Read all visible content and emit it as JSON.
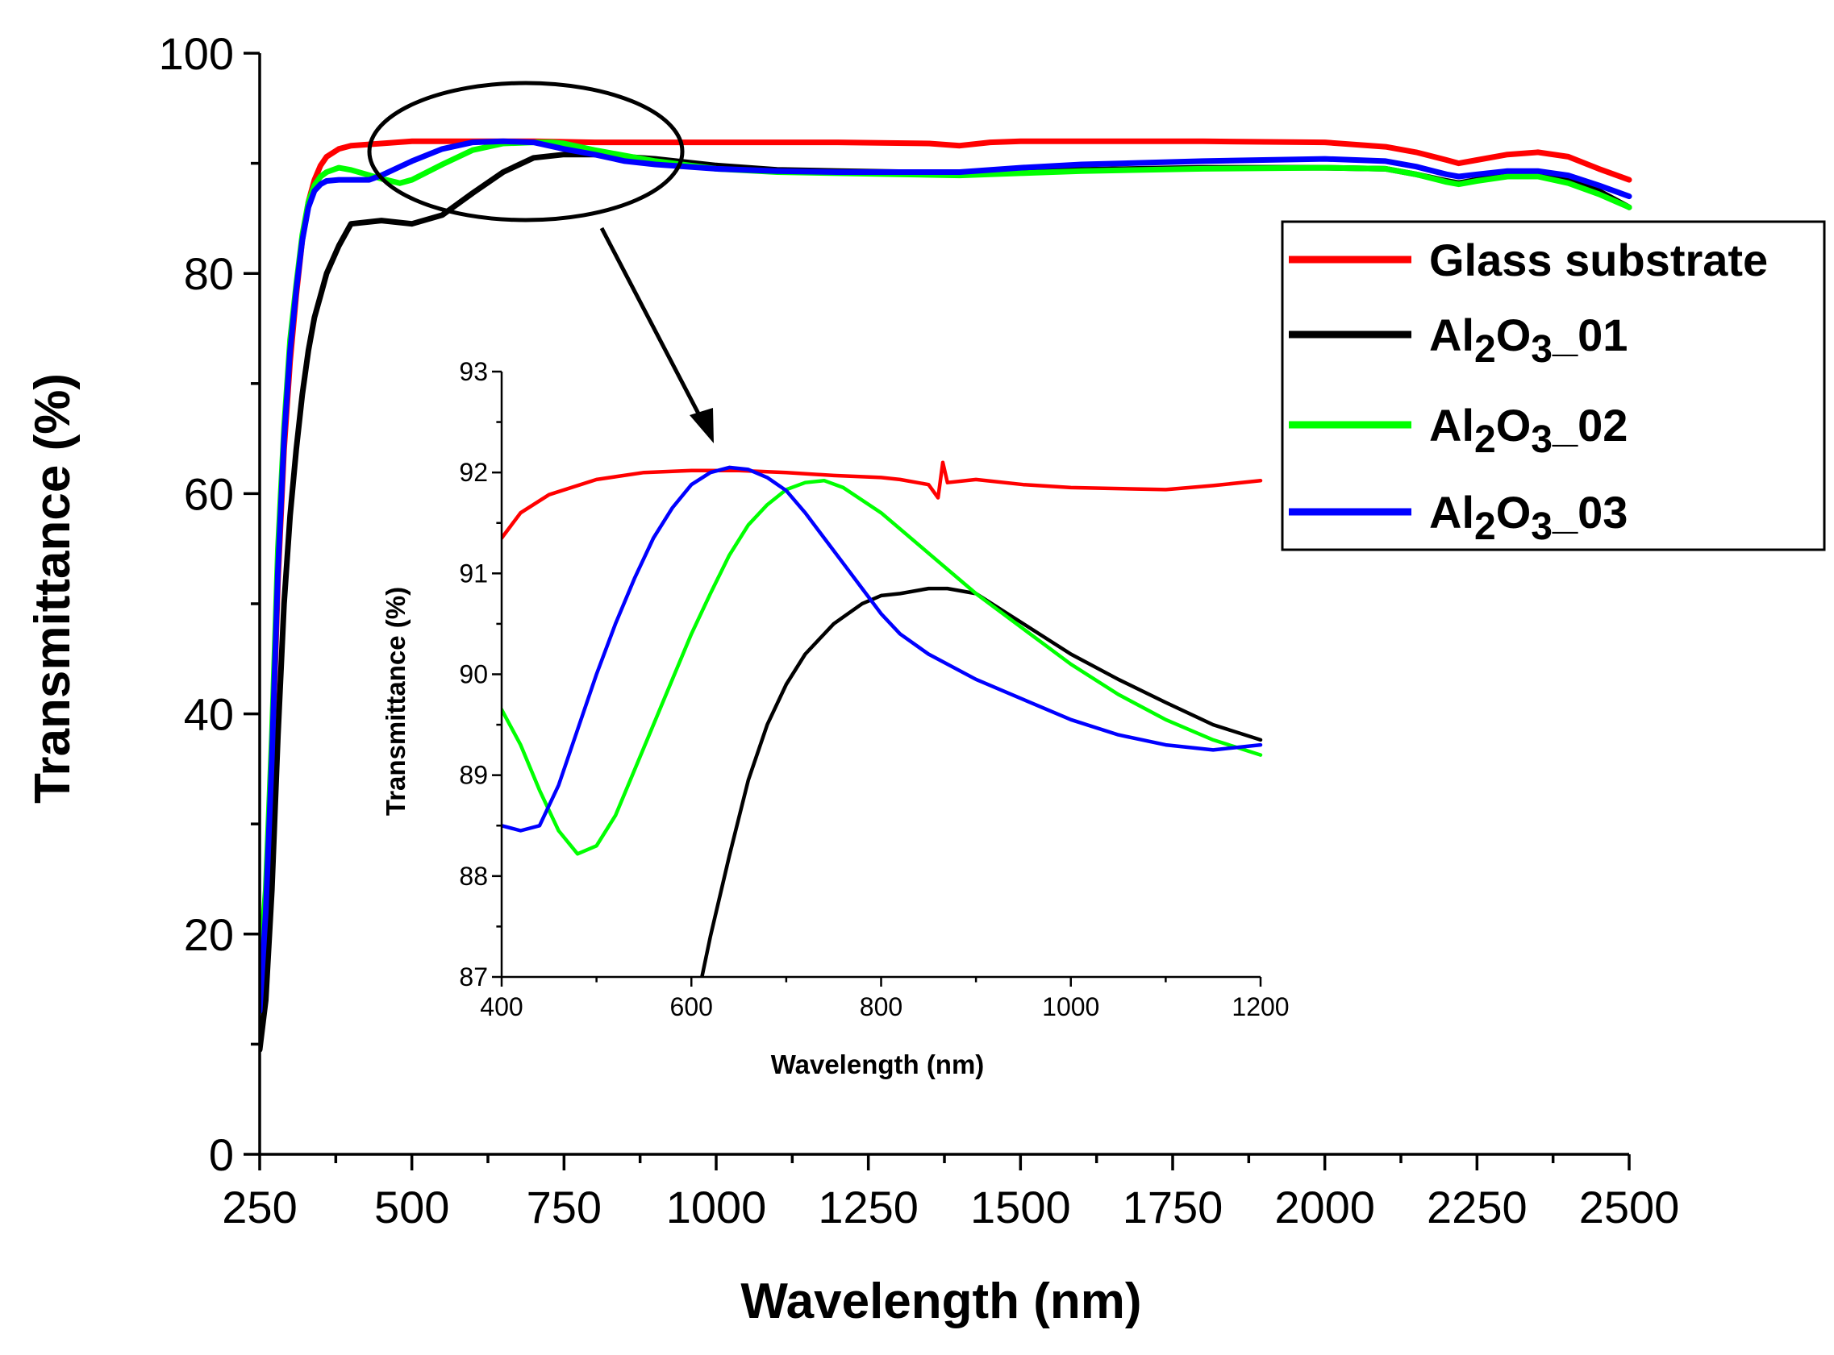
{
  "chart_data": [
    {
      "type": "line",
      "title": "",
      "xlabel": "Wavelength (nm)",
      "ylabel": "Transmittance (%)",
      "xlim": [
        250,
        2500
      ],
      "ylim": [
        0,
        100
      ],
      "xticks": [
        250,
        500,
        750,
        1000,
        1250,
        1500,
        1750,
        2000,
        2250,
        2500
      ],
      "yticks": [
        0,
        20,
        40,
        60,
        80,
        100
      ],
      "grid": false,
      "legend_position": "right",
      "series": [
        {
          "name": "Glass substrate",
          "color": "#ff0000",
          "x": [
            250,
            260,
            270,
            280,
            290,
            300,
            310,
            320,
            330,
            340,
            350,
            360,
            380,
            400,
            450,
            500,
            600,
            700,
            800,
            900,
            1000,
            1200,
            1350,
            1400,
            1450,
            1500,
            1600,
            1800,
            2000,
            2100,
            2150,
            2200,
            2220,
            2250,
            2300,
            2350,
            2400,
            2450,
            2500
          ],
          "y": [
            13.5,
            20,
            35,
            52,
            64,
            72,
            78,
            83,
            86.5,
            88.5,
            89.8,
            90.6,
            91.3,
            91.6,
            91.8,
            92.0,
            92.0,
            92.0,
            91.9,
            91.9,
            91.9,
            91.9,
            91.8,
            91.6,
            91.9,
            92.0,
            92.0,
            92.0,
            91.9,
            91.5,
            91.0,
            90.3,
            90.0,
            90.3,
            90.8,
            91.0,
            90.6,
            89.5,
            88.5
          ]
        },
        {
          "name": "Al₂O₃_01",
          "color": "#000000",
          "x": [
            250,
            260,
            270,
            280,
            290,
            300,
            310,
            320,
            330,
            340,
            350,
            360,
            380,
            400,
            450,
            500,
            550,
            600,
            650,
            700,
            750,
            800,
            900,
            1000,
            1100,
            1200,
            1300,
            1400,
            1500,
            1600,
            1800,
            2000,
            2100,
            2150,
            2200,
            2220,
            2250,
            2300,
            2350,
            2400,
            2450,
            2500
          ],
          "y": [
            9.5,
            14,
            24,
            38,
            50,
            58,
            64,
            69,
            73,
            76,
            78,
            80,
            82.5,
            84.5,
            84.8,
            84.5,
            85.3,
            87.3,
            89.2,
            90.5,
            90.8,
            90.8,
            90.4,
            89.8,
            89.4,
            89.3,
            89.2,
            89.0,
            89.2,
            89.4,
            89.6,
            89.6,
            89.5,
            89.0,
            88.4,
            88.2,
            88.5,
            89.0,
            89.0,
            88.5,
            87.5,
            86.0
          ]
        },
        {
          "name": "Al₂O₃_02",
          "color": "#00ff00",
          "x": [
            250,
            260,
            270,
            280,
            290,
            300,
            310,
            320,
            330,
            340,
            350,
            360,
            380,
            400,
            450,
            480,
            500,
            550,
            600,
            650,
            700,
            730,
            750,
            800,
            900,
            1000,
            1100,
            1200,
            1300,
            1400,
            1500,
            1600,
            1800,
            2000,
            2100,
            2150,
            2200,
            2220,
            2250,
            2300,
            2350,
            2400,
            2450,
            2500
          ],
          "y": [
            17,
            24,
            38,
            55,
            66,
            74,
            79,
            83.5,
            86.5,
            88,
            88.8,
            89.2,
            89.6,
            89.4,
            88.6,
            88.2,
            88.5,
            89.9,
            91.2,
            91.8,
            91.9,
            91.9,
            91.8,
            91.2,
            90.2,
            89.5,
            89.2,
            89.1,
            89.0,
            88.9,
            89.1,
            89.3,
            89.5,
            89.6,
            89.5,
            89.0,
            88.3,
            88.1,
            88.4,
            88.8,
            88.8,
            88.2,
            87.2,
            86.0
          ]
        },
        {
          "name": "Al₂O₃_03",
          "color": "#0000ff",
          "x": [
            250,
            260,
            270,
            280,
            290,
            300,
            310,
            320,
            330,
            340,
            350,
            360,
            380,
            400,
            430,
            450,
            500,
            550,
            600,
            650,
            700,
            750,
            800,
            850,
            900,
            1000,
            1100,
            1200,
            1300,
            1400,
            1500,
            1600,
            1800,
            2000,
            2100,
            2150,
            2200,
            2220,
            2250,
            2300,
            2350,
            2400,
            2450,
            2500
          ],
          "y": [
            13,
            22,
            36,
            53,
            65,
            73,
            78.5,
            83,
            86,
            87.5,
            88.1,
            88.4,
            88.5,
            88.5,
            88.5,
            88.9,
            90.2,
            91.3,
            91.9,
            92.0,
            91.9,
            91.3,
            90.8,
            90.2,
            89.9,
            89.5,
            89.3,
            89.2,
            89.2,
            89.2,
            89.6,
            89.9,
            90.2,
            90.4,
            90.2,
            89.7,
            89.0,
            88.8,
            89.0,
            89.3,
            89.3,
            88.9,
            88.0,
            87.0
          ]
        }
      ]
    },
    {
      "type": "line",
      "title": "",
      "xlabel": "Wavelength (nm)",
      "ylabel": "Transmittance (%)",
      "xlim": [
        400,
        1200
      ],
      "ylim": [
        87,
        93
      ],
      "xticks": [
        400,
        600,
        800,
        1000,
        1200
      ],
      "yticks": [
        87,
        88,
        89,
        90,
        91,
        92,
        93
      ],
      "grid": false,
      "series": [
        {
          "name": "Glass substrate",
          "color": "#ff0000",
          "x": [
            400,
            420,
            450,
            500,
            550,
            600,
            650,
            700,
            750,
            800,
            820,
            850,
            860,
            865,
            870,
            900,
            950,
            1000,
            1100,
            1150,
            1200
          ],
          "y": [
            91.35,
            91.6,
            91.78,
            91.93,
            92.0,
            92.02,
            92.02,
            92.0,
            91.97,
            91.95,
            91.93,
            91.88,
            91.75,
            92.1,
            91.9,
            91.93,
            91.88,
            91.85,
            91.83,
            91.87,
            91.92
          ]
        },
        {
          "name": "Al₂O₃_01",
          "color": "#000000",
          "x": [
            610,
            620,
            640,
            660,
            680,
            700,
            720,
            750,
            780,
            800,
            820,
            850,
            870,
            900,
            950,
            1000,
            1050,
            1100,
            1150,
            1200
          ],
          "y": [
            86.95,
            87.4,
            88.2,
            88.95,
            89.5,
            89.9,
            90.2,
            90.5,
            90.7,
            90.78,
            90.8,
            90.85,
            90.85,
            90.8,
            90.5,
            90.2,
            89.95,
            89.72,
            89.5,
            89.35
          ]
        },
        {
          "name": "Al₂O₃_02",
          "color": "#00ff00",
          "x": [
            400,
            420,
            440,
            460,
            480,
            500,
            520,
            540,
            560,
            580,
            600,
            620,
            640,
            660,
            680,
            700,
            720,
            740,
            760,
            800,
            850,
            900,
            950,
            1000,
            1050,
            1100,
            1150,
            1200
          ],
          "y": [
            89.65,
            89.3,
            88.85,
            88.45,
            88.22,
            88.3,
            88.6,
            89.05,
            89.5,
            89.95,
            90.4,
            90.8,
            91.18,
            91.48,
            91.68,
            91.83,
            91.9,
            91.92,
            91.85,
            91.6,
            91.2,
            90.8,
            90.45,
            90.1,
            89.8,
            89.55,
            89.35,
            89.2
          ]
        },
        {
          "name": "Al₂O₃_03",
          "color": "#0000ff",
          "x": [
            400,
            420,
            440,
            460,
            480,
            500,
            520,
            540,
            560,
            580,
            600,
            620,
            640,
            660,
            680,
            700,
            720,
            740,
            760,
            780,
            800,
            820,
            850,
            900,
            950,
            1000,
            1050,
            1100,
            1150,
            1200
          ],
          "y": [
            88.5,
            88.45,
            88.5,
            88.9,
            89.45,
            90.0,
            90.5,
            90.95,
            91.35,
            91.65,
            91.88,
            92.0,
            92.05,
            92.03,
            91.95,
            91.82,
            91.6,
            91.35,
            91.1,
            90.85,
            90.6,
            90.4,
            90.2,
            89.95,
            89.75,
            89.55,
            89.4,
            89.3,
            89.25,
            89.3
          ]
        }
      ]
    }
  ],
  "legend": {
    "items": [
      {
        "base": "Glass substrate",
        "sub1": "",
        "mid": "",
        "sub2": "",
        "tail": "",
        "color": "#ff0000"
      },
      {
        "base": "Al",
        "sub1": "2",
        "mid": "O",
        "sub2": "3",
        "tail": "_01",
        "color": "#000000"
      },
      {
        "base": "Al",
        "sub1": "2",
        "mid": "O",
        "sub2": "3",
        "tail": "_02",
        "color": "#00ff00"
      },
      {
        "base": "Al",
        "sub1": "2",
        "mid": "O",
        "sub2": "3",
        "tail": "_03",
        "color": "#0000ff"
      }
    ]
  }
}
